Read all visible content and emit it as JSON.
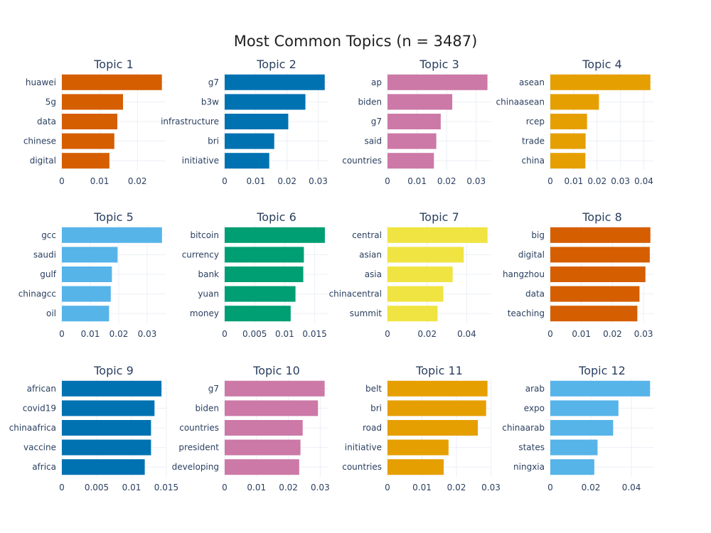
{
  "title": "Most Common Topics (n = 3487)",
  "chart_data": [
    {
      "type": "bar",
      "orientation": "horizontal",
      "title": "Topic 1",
      "color": "#D55E00",
      "categories": [
        "huawei",
        "5g",
        "data",
        "chinese",
        "digital"
      ],
      "values": [
        0.0265,
        0.0162,
        0.0147,
        0.0139,
        0.0126
      ],
      "xlim": [
        0,
        0.0275
      ],
      "ticks": [
        0,
        0.01,
        0.02
      ],
      "tick_labels": [
        "0",
        "0.01",
        "0.02"
      ]
    },
    {
      "type": "bar",
      "orientation": "horizontal",
      "title": "Topic 2",
      "color": "#0072B2",
      "categories": [
        "g7",
        "b3w",
        "infrastructure",
        "bri",
        "initiative"
      ],
      "values": [
        0.0321,
        0.0259,
        0.0204,
        0.0159,
        0.0143
      ],
      "xlim": [
        0,
        0.0333
      ],
      "ticks": [
        0,
        0.01,
        0.02,
        0.03
      ],
      "tick_labels": [
        "0",
        "0.01",
        "0.02",
        "0.03"
      ]
    },
    {
      "type": "bar",
      "orientation": "horizontal",
      "title": "Topic 3",
      "color": "#CC79A7",
      "categories": [
        "ap",
        "biden",
        "g7",
        "said",
        "countries"
      ],
      "values": [
        0.0338,
        0.0219,
        0.018,
        0.0165,
        0.0157
      ],
      "xlim": [
        0,
        0.0351
      ],
      "ticks": [
        0,
        0.01,
        0.02,
        0.03
      ],
      "tick_labels": [
        "0",
        "0.01",
        "0.02",
        "0.03"
      ]
    },
    {
      "type": "bar",
      "orientation": "horizontal",
      "title": "Topic 4",
      "color": "#E69F00",
      "categories": [
        "asean",
        "chinaasean",
        "rcep",
        "trade",
        "china"
      ],
      "values": [
        0.0428,
        0.0208,
        0.0157,
        0.0151,
        0.015
      ],
      "xlim": [
        0,
        0.0444
      ],
      "ticks": [
        0,
        0.01,
        0.02,
        0.03,
        0.04
      ],
      "tick_labels": [
        "0",
        "0.01",
        "0.02",
        "0.03",
        "0.04"
      ]
    },
    {
      "type": "bar",
      "orientation": "horizontal",
      "title": "Topic 5",
      "color": "#56B4E9",
      "categories": [
        "gcc",
        "saudi",
        "gulf",
        "chinagcc",
        "oil"
      ],
      "values": [
        0.0352,
        0.0196,
        0.0176,
        0.0172,
        0.0166
      ],
      "xlim": [
        0,
        0.0365
      ],
      "ticks": [
        0,
        0.01,
        0.02,
        0.03
      ],
      "tick_labels": [
        "0",
        "0.01",
        "0.02",
        "0.03"
      ]
    },
    {
      "type": "bar",
      "orientation": "horizontal",
      "title": "Topic 6",
      "color": "#009E73",
      "categories": [
        "bitcoin",
        "currency",
        "bank",
        "yuan",
        "money"
      ],
      "values": [
        0.0167,
        0.0132,
        0.0131,
        0.0118,
        0.011
      ],
      "xlim": [
        0,
        0.0173
      ],
      "ticks": [
        0,
        0.005,
        0.01,
        0.015
      ],
      "tick_labels": [
        "0",
        "0.005",
        "0.01",
        "0.015"
      ]
    },
    {
      "type": "bar",
      "orientation": "horizontal",
      "title": "Topic 7",
      "color": "#F0E442",
      "categories": [
        "central",
        "asian",
        "asia",
        "chinacentral",
        "summit"
      ],
      "values": [
        0.0505,
        0.0385,
        0.0329,
        0.0282,
        0.0253
      ],
      "xlim": [
        0,
        0.0524
      ],
      "ticks": [
        0,
        0.02,
        0.04
      ],
      "tick_labels": [
        "0",
        "0.02",
        "0.04"
      ]
    },
    {
      "type": "bar",
      "orientation": "horizontal",
      "title": "Topic 8",
      "color": "#D55E00",
      "categories": [
        "big",
        "digital",
        "hangzhou",
        "data",
        "teaching"
      ],
      "values": [
        0.0322,
        0.032,
        0.0306,
        0.0287,
        0.028
      ],
      "xlim": [
        0,
        0.0334
      ],
      "ticks": [
        0,
        0.01,
        0.02,
        0.03
      ],
      "tick_labels": [
        "0",
        "0.01",
        "0.02",
        "0.03"
      ]
    },
    {
      "type": "bar",
      "orientation": "horizontal",
      "title": "Topic 9",
      "color": "#0072B2",
      "categories": [
        "african",
        "covid19",
        "chinaafrica",
        "vaccine",
        "africa"
      ],
      "values": [
        0.0143,
        0.0133,
        0.0128,
        0.0128,
        0.0119
      ],
      "xlim": [
        0,
        0.0149
      ],
      "ticks": [
        0,
        0.005,
        0.01,
        0.015
      ],
      "tick_labels": [
        "0",
        "0.005",
        "0.01",
        "0.015"
      ]
    },
    {
      "type": "bar",
      "orientation": "horizontal",
      "title": "Topic 10",
      "color": "#CC79A7",
      "categories": [
        "g7",
        "biden",
        "countries",
        "president",
        "developing"
      ],
      "values": [
        0.0314,
        0.0293,
        0.0245,
        0.0238,
        0.0234
      ],
      "xlim": [
        0,
        0.0326
      ],
      "ticks": [
        0,
        0.01,
        0.02,
        0.03
      ],
      "tick_labels": [
        "0",
        "0.01",
        "0.02",
        "0.03"
      ]
    },
    {
      "type": "bar",
      "orientation": "horizontal",
      "title": "Topic 11",
      "color": "#E69F00",
      "categories": [
        "belt",
        "bri",
        "road",
        "initiative",
        "countries"
      ],
      "values": [
        0.029,
        0.0286,
        0.0262,
        0.0177,
        0.0163
      ],
      "xlim": [
        0,
        0.0301
      ],
      "ticks": [
        0,
        0.01,
        0.02,
        0.03
      ],
      "tick_labels": [
        "0",
        "0.01",
        "0.02",
        "0.03"
      ]
    },
    {
      "type": "bar",
      "orientation": "horizontal",
      "title": "Topic 12",
      "color": "#56B4E9",
      "categories": [
        "arab",
        "expo",
        "chinaarab",
        "states",
        "ningxia"
      ],
      "values": [
        0.0492,
        0.0336,
        0.031,
        0.0233,
        0.0217
      ],
      "xlim": [
        0,
        0.0512
      ],
      "ticks": [
        0,
        0.02,
        0.04
      ],
      "tick_labels": [
        "0",
        "0.02",
        "0.04"
      ]
    }
  ]
}
